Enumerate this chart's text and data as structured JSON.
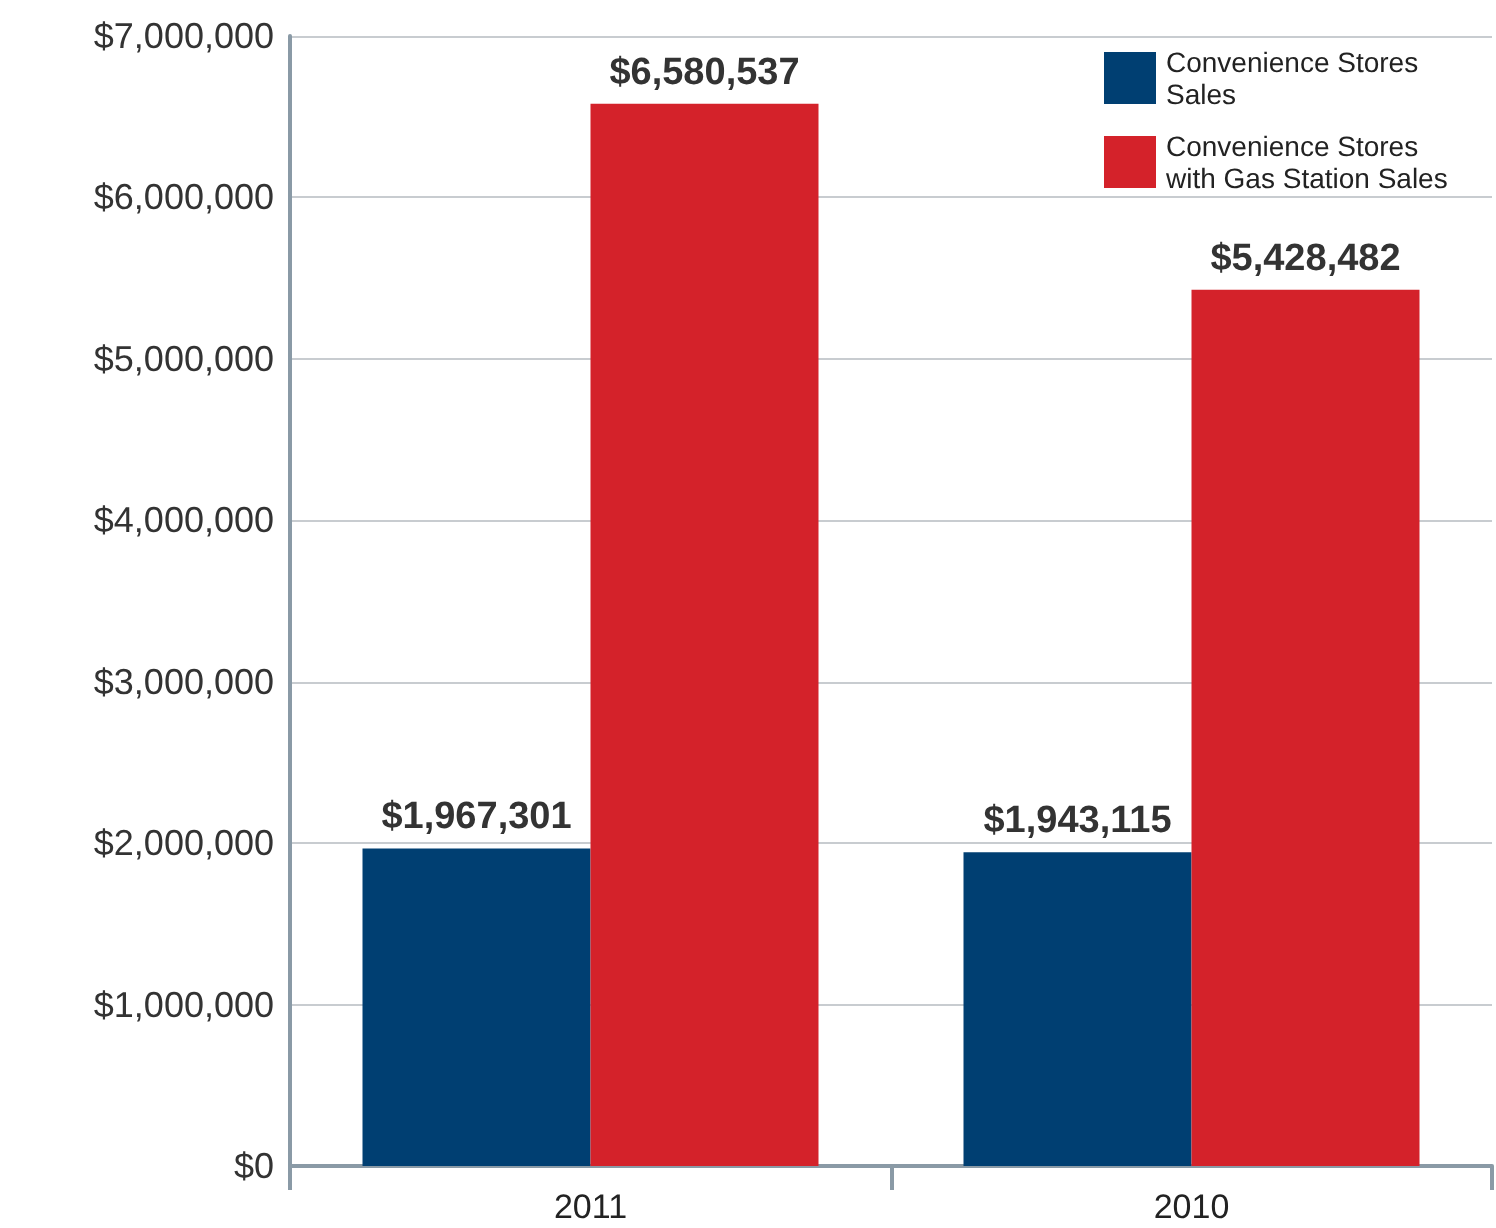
{
  "chart_data": {
    "type": "bar",
    "categories": [
      "2011",
      "2010"
    ],
    "series": [
      {
        "name": "Convenience Stores Sales",
        "color": "#003f72",
        "values": [
          1967301,
          1943115
        ],
        "value_labels": [
          "$1,967,301",
          "$1,943,115"
        ]
      },
      {
        "name": "Convenience Stores with Gas Station Sales",
        "color": "#d4222a",
        "values": [
          6580537,
          5428482
        ],
        "value_labels": [
          "$6,580,537",
          "$5,428,482"
        ]
      }
    ],
    "ylim": [
      0,
      7000000
    ],
    "yticks": [
      {
        "value": 0,
        "label": "$0"
      },
      {
        "value": 1000000,
        "label": "$1,000,000"
      },
      {
        "value": 2000000,
        "label": "$2,000,000"
      },
      {
        "value": 3000000,
        "label": "$3,000,000"
      },
      {
        "value": 4000000,
        "label": "$4,000,000"
      },
      {
        "value": 5000000,
        "label": "$5,000,000"
      },
      {
        "value": 6000000,
        "label": "$6,000,000"
      },
      {
        "value": 7000000,
        "label": "$7,000,000"
      }
    ],
    "grid": "y",
    "legend": "top right"
  }
}
